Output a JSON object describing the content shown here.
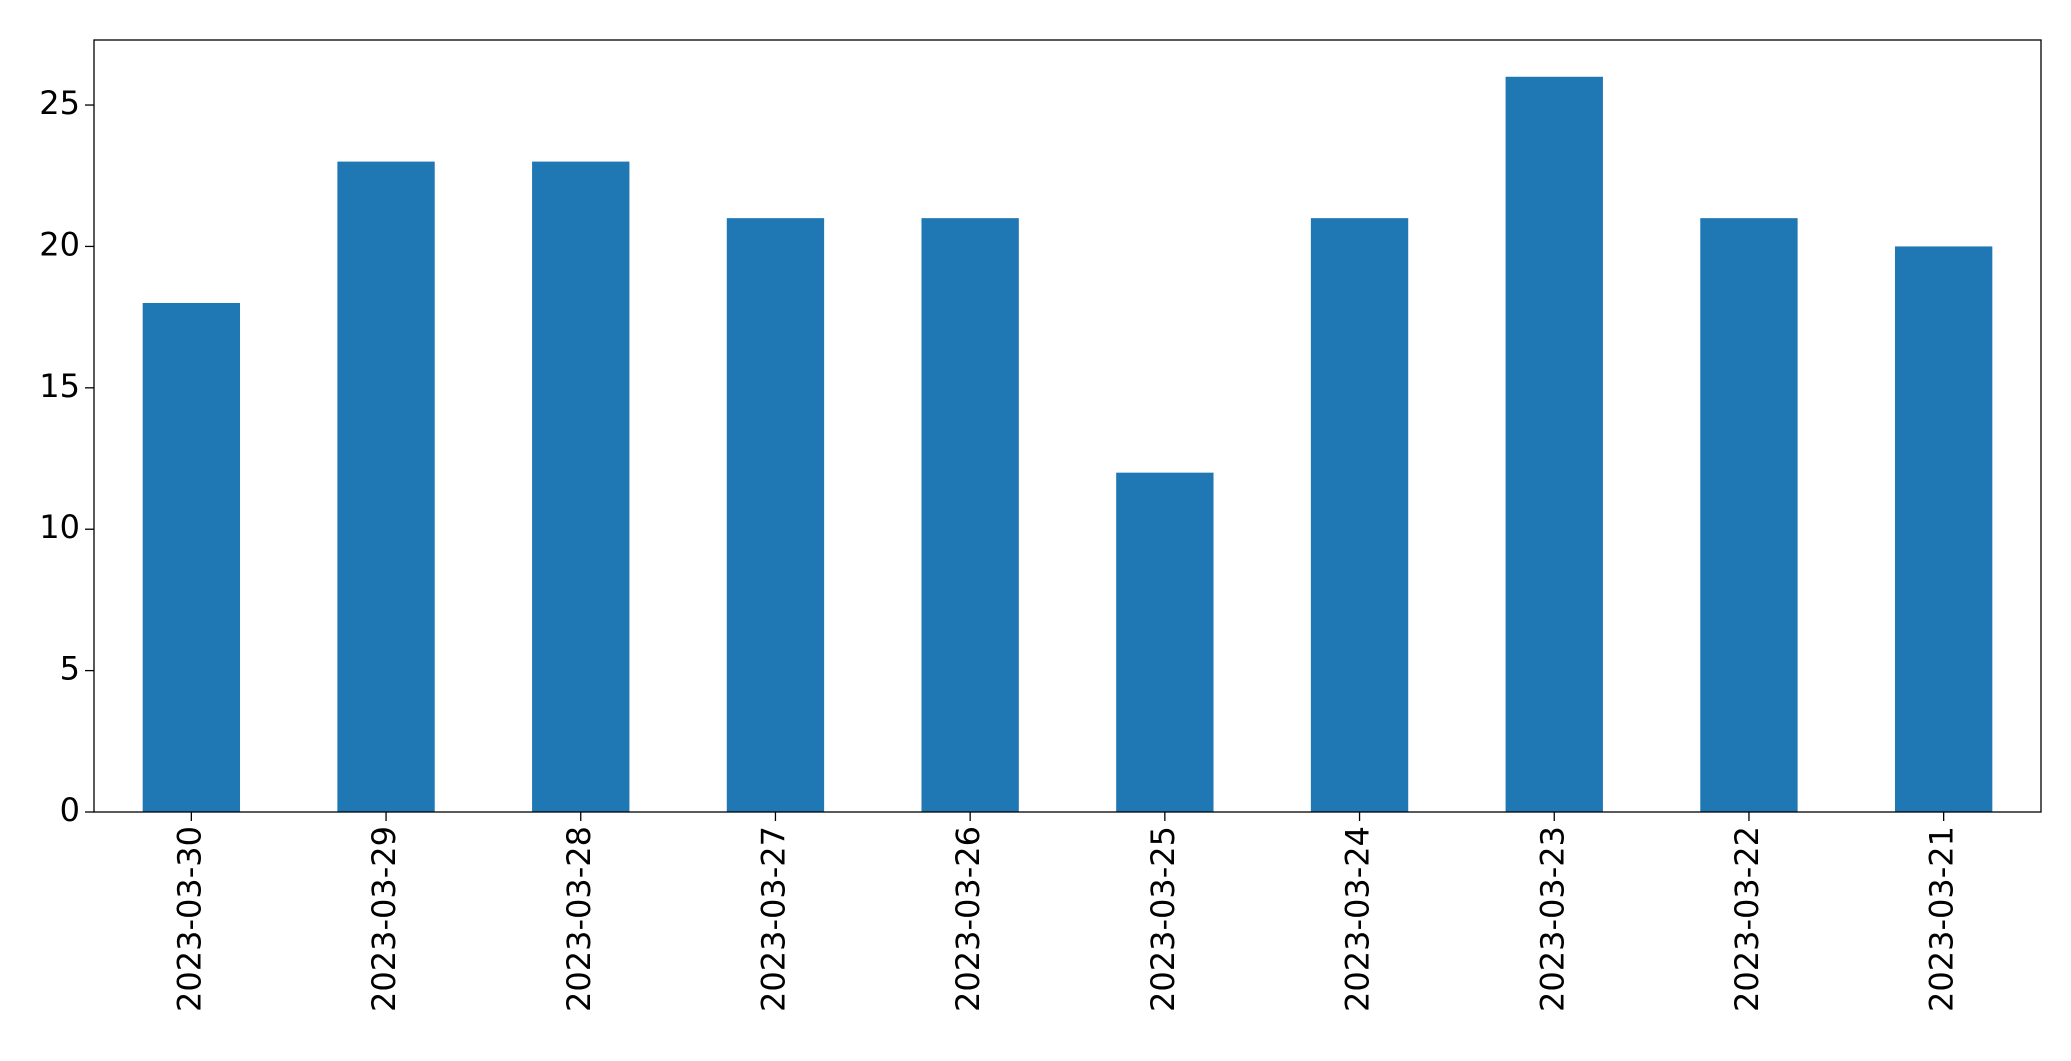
{
  "chart_data": {
    "type": "bar",
    "categories": [
      "2023-03-30",
      "2023-03-29",
      "2023-03-28",
      "2023-03-27",
      "2023-03-26",
      "2023-03-25",
      "2023-03-24",
      "2023-03-23",
      "2023-03-22",
      "2023-03-21"
    ],
    "values": [
      18,
      23,
      23,
      21,
      21,
      12,
      21,
      26,
      21,
      20
    ],
    "color": "#1f77b4",
    "ylim": [
      0,
      27.3
    ],
    "yticks": [
      0,
      5,
      10,
      15,
      20,
      25
    ],
    "grid": false
  }
}
